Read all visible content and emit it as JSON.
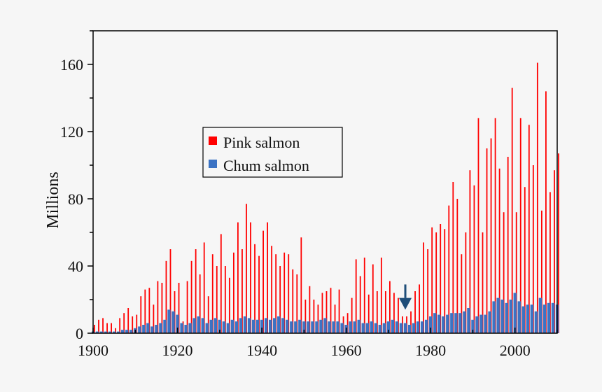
{
  "chart_data": {
    "type": "bar",
    "title": "",
    "xlabel": "",
    "ylabel": "Millions",
    "xlim": [
      1900,
      2010
    ],
    "ylim": [
      0,
      180
    ],
    "x_ticks": [
      "1900",
      "1920",
      "1940",
      "1960",
      "1980",
      "2000"
    ],
    "y_ticks": [
      "0",
      "40",
      "80",
      "120",
      "160"
    ],
    "grid": false,
    "legend_position": "upper-left-center",
    "x": [
      1900,
      1901,
      1902,
      1903,
      1904,
      1905,
      1906,
      1907,
      1908,
      1909,
      1910,
      1911,
      1912,
      1913,
      1914,
      1915,
      1916,
      1917,
      1918,
      1919,
      1920,
      1921,
      1922,
      1923,
      1924,
      1925,
      1926,
      1927,
      1928,
      1929,
      1930,
      1931,
      1932,
      1933,
      1934,
      1935,
      1936,
      1937,
      1938,
      1939,
      1940,
      1941,
      1942,
      1943,
      1944,
      1945,
      1946,
      1947,
      1948,
      1949,
      1950,
      1951,
      1952,
      1953,
      1954,
      1955,
      1956,
      1957,
      1958,
      1959,
      1960,
      1961,
      1962,
      1963,
      1964,
      1965,
      1966,
      1967,
      1968,
      1969,
      1970,
      1971,
      1972,
      1973,
      1974,
      1975,
      1976,
      1977,
      1978,
      1979,
      1980,
      1981,
      1982,
      1983,
      1984,
      1985,
      1986,
      1987,
      1988,
      1989,
      1990,
      1991,
      1992,
      1993,
      1994,
      1995,
      1996,
      1997,
      1998,
      1999,
      2000,
      2001,
      2002,
      2003,
      2004,
      2005,
      2006,
      2007,
      2008,
      2009,
      2010
    ],
    "series": [
      {
        "name": "Pink salmon",
        "color": "#ff0000",
        "values": [
          5,
          8,
          9,
          6,
          6,
          3,
          9,
          12,
          15,
          10,
          11,
          22,
          26,
          27,
          17,
          31,
          30,
          43,
          50,
          25,
          30,
          7,
          31,
          43,
          50,
          35,
          54,
          22,
          47,
          40,
          59,
          40,
          33,
          48,
          66,
          50,
          77,
          66,
          53,
          46,
          61,
          66,
          52,
          47,
          40,
          48,
          47,
          38,
          35,
          57,
          20,
          28,
          20,
          17,
          24,
          25,
          27,
          17,
          26,
          10,
          12,
          21,
          44,
          34,
          45,
          23,
          41,
          25,
          45,
          25,
          31,
          24,
          21,
          10,
          10,
          13,
          25,
          29,
          54,
          50,
          63,
          60,
          65,
          62,
          76,
          90,
          80,
          47,
          60,
          97,
          88,
          128,
          60,
          110,
          116,
          128,
          98,
          72,
          105,
          146,
          72,
          128,
          87,
          124,
          100,
          161,
          73,
          144,
          84,
          97,
          107
        ]
      },
      {
        "name": "Chum salmon",
        "color": "#3b73c4",
        "values": [
          1,
          1,
          1,
          1,
          1,
          1,
          1,
          2,
          2,
          2,
          3,
          4,
          5,
          6,
          4,
          5,
          6,
          8,
          14,
          13,
          11,
          6,
          5,
          6,
          9,
          10,
          9,
          6,
          8,
          9,
          8,
          7,
          6,
          8,
          7,
          9,
          10,
          9,
          8,
          8,
          8,
          9,
          8,
          9,
          10,
          9,
          8,
          7,
          7,
          8,
          7,
          7,
          7,
          7,
          8,
          9,
          7,
          7,
          7,
          6,
          5,
          7,
          7,
          8,
          6,
          6,
          7,
          6,
          5,
          6,
          7,
          8,
          7,
          6,
          6,
          5,
          6,
          7,
          7,
          8,
          10,
          12,
          11,
          10,
          11,
          12,
          12,
          12,
          13,
          15,
          8,
          10,
          11,
          11,
          13,
          19,
          21,
          20,
          18,
          20,
          24,
          19,
          16,
          17,
          17,
          13,
          21,
          17,
          18,
          18,
          17
        ]
      }
    ],
    "annotations": [
      {
        "type": "arrow",
        "x": 1974,
        "points_to": "downward",
        "color": "#1f4e79"
      }
    ]
  }
}
